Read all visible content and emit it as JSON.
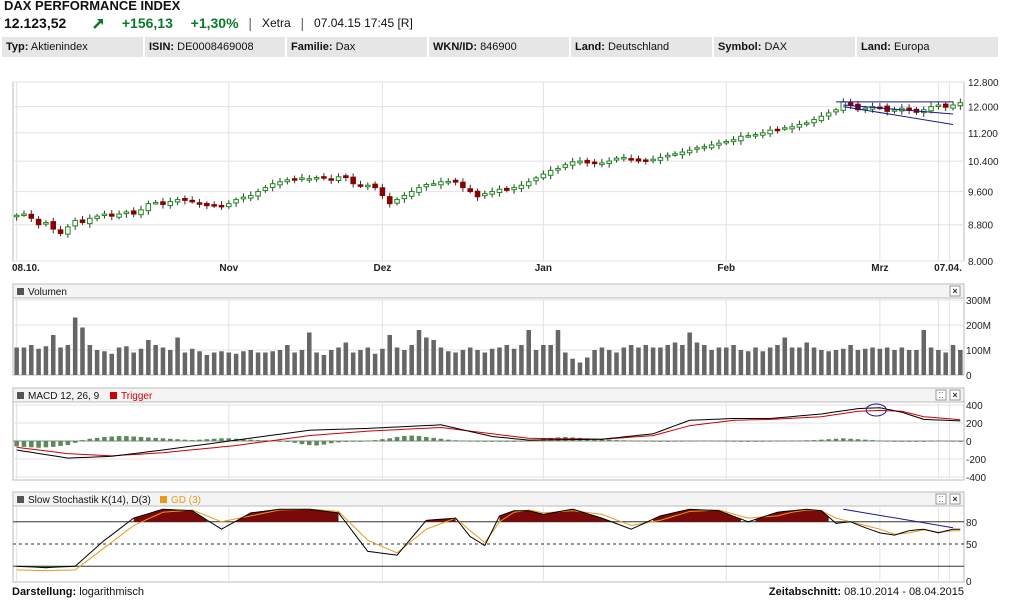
{
  "header": {
    "title": "DAX PERFORMANCE INDEX",
    "price": "12.123,52",
    "change": "+156,13",
    "change_pct": "+1,30%",
    "exchange": "Xetra",
    "timestamp": "07.04.15 17:45 [R]",
    "up_color": "#0a7a2a"
  },
  "info": [
    {
      "label": "Typ:",
      "value": "Aktienindex"
    },
    {
      "label": "ISIN:",
      "value": "DE0008469008"
    },
    {
      "label": "Familie:",
      "value": "Dax"
    },
    {
      "label": "WKN/ID:",
      "value": "846900"
    },
    {
      "label": "Land:",
      "value": "Deutschland"
    },
    {
      "label": "Symbol:",
      "value": "DAX"
    },
    {
      "label": "Land:",
      "value": "Europa"
    }
  ],
  "footer": {
    "scale_label": "Darstellung:",
    "scale_value": "logarithmisch",
    "period_label": "Zeitabschnitt:",
    "period_value": "08.10.2014 - 08.04.2015"
  },
  "chart_data": [
    {
      "type": "candlestick",
      "scale": "log",
      "ylim": [
        8000,
        12800
      ],
      "yticks": [
        "12.800",
        "12.000",
        "11.200",
        "10.400",
        "9.600",
        "8.800",
        "8.000"
      ],
      "ytick_values": [
        12800,
        12000,
        11200,
        10400,
        9600,
        8800,
        8000
      ],
      "xticks": [
        "08.10.",
        "Nov",
        "Dez",
        "Jan",
        "Feb",
        "Mrz",
        "07.04."
      ],
      "up_color": "#1a8a1a",
      "down_color": "#8b0000",
      "close": [
        9020,
        9050,
        8950,
        8800,
        8850,
        8700,
        8600,
        8750,
        8900,
        8850,
        8950,
        9000,
        9050,
        9000,
        9050,
        9100,
        9050,
        9150,
        9300,
        9330,
        9280,
        9350,
        9400,
        9380,
        9350,
        9300,
        9250,
        9270,
        9250,
        9300,
        9400,
        9460,
        9500,
        9600,
        9700,
        9800,
        9850,
        9900,
        9920,
        9950,
        9930,
        9960,
        9950,
        9900,
        9980,
        9960,
        9800,
        9750,
        9760,
        9700,
        9500,
        9300,
        9400,
        9500,
        9600,
        9700,
        9780,
        9800,
        9850,
        9860,
        9840,
        9700,
        9600,
        9470,
        9550,
        9600,
        9660,
        9630,
        9700,
        9760,
        9850,
        9950,
        10050,
        10150,
        10200,
        10300,
        10380,
        10400,
        10350,
        10330,
        10350,
        10400,
        10480,
        10500,
        10460,
        10400,
        10420,
        10450,
        10500,
        10560,
        10600,
        10650,
        10700,
        10770,
        10800,
        10850,
        10900,
        10950,
        11000,
        11100,
        11120,
        11150,
        11200,
        11280,
        11300,
        11350,
        11380,
        11450,
        11500,
        11600,
        11700,
        11800,
        11900,
        12150,
        12050,
        11900,
        11950,
        12000,
        11980,
        11850,
        11900,
        11950,
        11880,
        11820,
        11900,
        12000,
        12050,
        11980,
        12050,
        12123
      ],
      "trendlines": [
        {
          "from": [
            112,
            12150
          ],
          "to": [
            128,
            12150
          ]
        },
        {
          "from": [
            113,
            12050
          ],
          "to": [
            128,
            11770
          ]
        },
        {
          "from": [
            113,
            12000
          ],
          "to": [
            128,
            11450
          ]
        }
      ]
    },
    {
      "type": "bar",
      "title": "Volumen",
      "ylim": [
        0,
        300
      ],
      "yticks": [
        "300M",
        "200M",
        "100M",
        "0"
      ],
      "ytick_values": [
        300,
        200,
        100,
        0
      ],
      "values": [
        110,
        110,
        120,
        105,
        115,
        160,
        110,
        120,
        230,
        190,
        120,
        100,
        95,
        85,
        110,
        115,
        90,
        105,
        140,
        120,
        110,
        100,
        150,
        90,
        105,
        95,
        80,
        90,
        95,
        90,
        85,
        95,
        100,
        90,
        90,
        95,
        100,
        120,
        90,
        100,
        170,
        90,
        80,
        100,
        110,
        130,
        90,
        100,
        110,
        85,
        105,
        160,
        110,
        100,
        120,
        180,
        150,
        140,
        110,
        95,
        90,
        100,
        110,
        100,
        90,
        105,
        110,
        120,
        105,
        120,
        180,
        100,
        120,
        120,
        180,
        90,
        65,
        50,
        70,
        100,
        110,
        100,
        90,
        110,
        120,
        110,
        120,
        110,
        110,
        120,
        130,
        120,
        170,
        130,
        120,
        100,
        110,
        110,
        120,
        100,
        95,
        110,
        95,
        110,
        120,
        150,
        110,
        110,
        130,
        110,
        100,
        95,
        100,
        105,
        120,
        100,
        105,
        110,
        105,
        110,
        100,
        110,
        100,
        100,
        180,
        110,
        100,
        90,
        120,
        100
      ]
    },
    {
      "type": "line",
      "title": "MACD 12, 26, 9",
      "series": [
        {
          "name": "MACD 12, 26, 9",
          "color": "#000000"
        },
        {
          "name": "Trigger",
          "color": "#cc0000"
        }
      ],
      "ylim": [
        -400,
        400
      ],
      "yticks": [
        "400",
        "200",
        "0",
        "-200",
        "-400"
      ],
      "ytick_values": [
        400,
        200,
        0,
        -200,
        -400
      ],
      "x": [
        0,
        7,
        13,
        20,
        30,
        40,
        48,
        58,
        65,
        70,
        80,
        87,
        92,
        98,
        103,
        110,
        115,
        118,
        121,
        124,
        130
      ],
      "macd": [
        -100,
        -190,
        -170,
        -100,
        10,
        120,
        140,
        180,
        50,
        10,
        20,
        80,
        230,
        250,
        250,
        300,
        360,
        370,
        320,
        240,
        220
      ],
      "trigger": [
        -70,
        -140,
        -165,
        -130,
        -50,
        60,
        110,
        150,
        80,
        30,
        20,
        60,
        170,
        230,
        240,
        270,
        330,
        340,
        330,
        270,
        230
      ],
      "histogram": [
        -60,
        -65,
        -70,
        -75,
        -70,
        -65,
        -55,
        -45,
        -20,
        10,
        25,
        35,
        45,
        50,
        55,
        55,
        50,
        45,
        40,
        35,
        30,
        25,
        20,
        15,
        10,
        15,
        20,
        25,
        30,
        30,
        25,
        20,
        15,
        10,
        8,
        5,
        0,
        -10,
        -20,
        -35,
        -45,
        -50,
        -40,
        -25,
        -15,
        -10,
        -5,
        0,
        5,
        10,
        20,
        30,
        45,
        55,
        60,
        55,
        45,
        35,
        25,
        15,
        8,
        4,
        2,
        1,
        -2,
        -5,
        -8,
        -5,
        -3,
        2,
        8,
        15,
        25,
        35,
        40,
        45,
        40,
        35,
        30,
        25,
        20,
        15,
        10,
        8,
        5,
        3,
        2,
        1,
        0,
        0,
        1,
        2,
        3,
        4,
        5,
        4,
        3,
        2,
        1,
        0,
        0,
        0,
        1,
        2,
        3,
        4,
        5,
        6,
        8,
        10,
        15,
        20,
        25,
        30,
        25,
        20,
        15,
        10,
        5,
        2,
        0,
        -2,
        -3,
        -2,
        0,
        2,
        5,
        3,
        1,
        0
      ]
    },
    {
      "type": "line",
      "title": "Slow Stochastik K(14), D(3)",
      "series": [
        {
          "name": "Slow Stochastik K(14), D(3)",
          "color": "#000000"
        },
        {
          "name": "GD (3)",
          "color": "#e89a1a"
        }
      ],
      "ylim": [
        0,
        100
      ],
      "yticks": [
        "80",
        "50",
        "0"
      ],
      "ytick_values": [
        80,
        50,
        0
      ],
      "x": [
        0,
        4,
        8,
        12,
        16,
        20,
        24,
        28,
        32,
        36,
        40,
        44,
        48,
        52,
        56,
        60,
        62,
        64,
        66,
        68,
        70,
        72,
        76,
        80,
        84,
        88,
        92,
        96,
        100,
        104,
        106,
        108,
        110,
        112,
        114,
        116,
        118,
        120,
        122,
        124,
        126,
        128
      ],
      "k": [
        20,
        18,
        20,
        55,
        85,
        97,
        95,
        70,
        92,
        97,
        97,
        92,
        40,
        35,
        82,
        85,
        60,
        48,
        88,
        95,
        95,
        90,
        97,
        85,
        70,
        88,
        97,
        95,
        80,
        93,
        95,
        97,
        95,
        78,
        80,
        72,
        65,
        62,
        68,
        70,
        65,
        70
      ],
      "d": [
        15,
        14,
        15,
        45,
        75,
        93,
        96,
        80,
        88,
        96,
        97,
        94,
        55,
        38,
        70,
        85,
        68,
        52,
        80,
        93,
        96,
        92,
        95,
        90,
        75,
        82,
        94,
        96,
        85,
        88,
        93,
        96,
        95,
        85,
        80,
        75,
        70,
        63,
        65,
        69,
        66,
        68
      ]
    }
  ]
}
